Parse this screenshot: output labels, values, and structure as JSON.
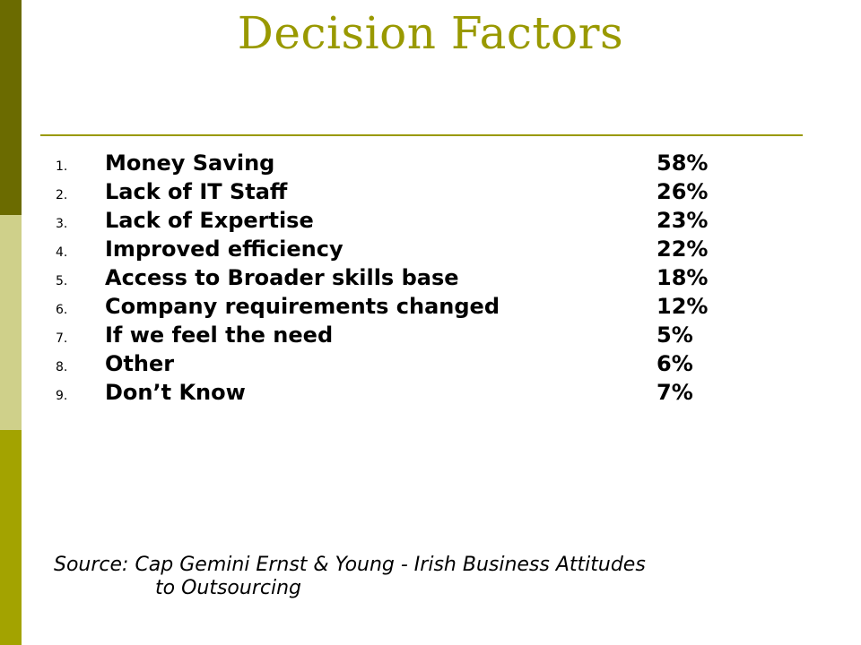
{
  "slide": {
    "title": "Decision Factors",
    "factors": [
      {
        "number": "1.",
        "label": "Money Saving",
        "percent": "58%"
      },
      {
        "number": "2.",
        "label": "Lack of IT Staff",
        "percent": "26%"
      },
      {
        "number": "3.",
        "label": "Lack of Expertise",
        "percent": "23%"
      },
      {
        "number": "4.",
        "label": "Improved efficiency",
        "percent": "22%"
      },
      {
        "number": "5.",
        "label": "Access to Broader skills base",
        "percent": "18%"
      },
      {
        "number": "6.",
        "label": "Company requirements changed",
        "percent": "12%"
      },
      {
        "number": "7.",
        "label": "If we feel the need",
        "percent": "5%"
      },
      {
        "number": "8.",
        "label": "Other",
        "percent": "6%"
      },
      {
        "number": "9.",
        "label": "Don’t Know",
        "percent": "7%"
      }
    ],
    "source_line1": "Source: Cap Gemini Ernst & Young - Irish Business Attitudes",
    "source_line2": "to Outsourcing"
  },
  "colors": {
    "title": "#999900",
    "rule": "#999900",
    "bar_top": "#6b6b00",
    "bar_middle": "#cfd08a",
    "bar_bottom": "#a3a300"
  }
}
